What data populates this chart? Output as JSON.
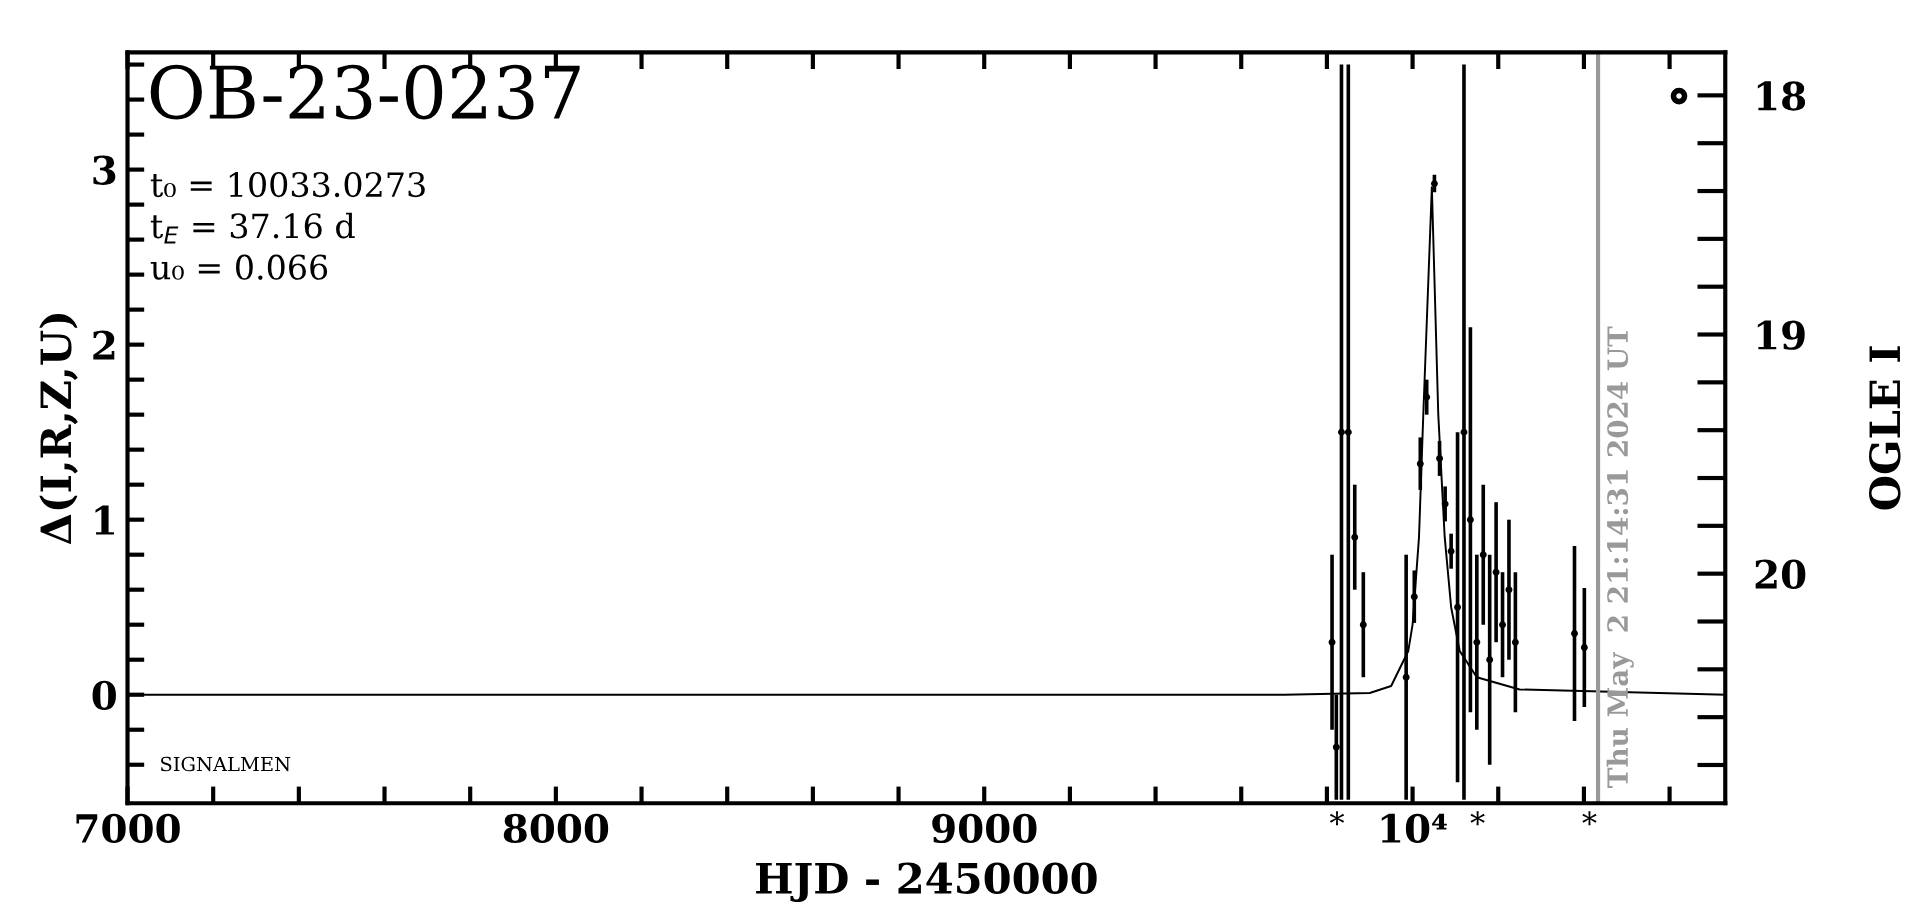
{
  "chart_data": {
    "type": "scatter",
    "title": "OB-23-0237",
    "xlabel": "HJD - 2450000",
    "ylabel": "Δ(I,R,Z,U)",
    "y2label": "OGLE I",
    "annotations": [
      "t₀ = 10033.0273",
      "t$_{E}$ = 37.16 d",
      "u₀ = 0.066",
      "SIGNALMEN",
      "Thu May  2 21:14:31 2024 UT",
      "*",
      "*",
      "*"
    ],
    "xlim": [
      7000,
      10730
    ],
    "ylim": [
      -0.62,
      3.67
    ],
    "y2lim": [
      20.96,
      17.82
    ],
    "xticks": [
      7000,
      {
        "value": 7200,
        "label": null
      },
      {
        "value": 7400,
        "label": null
      },
      {
        "value": 7600,
        "label": null
      },
      {
        "value": 7800,
        "label": null
      },
      8000,
      {
        "value": 8200,
        "label": null
      },
      {
        "value": 8400,
        "label": null
      },
      {
        "value": 8600,
        "label": null
      },
      {
        "value": 8800,
        "label": null
      },
      9000,
      {
        "value": 9200,
        "label": null
      },
      {
        "value": 9400,
        "label": null
      },
      {
        "value": 9600,
        "label": null
      },
      {
        "value": 9800,
        "label": null
      },
      {
        "value": 10000,
        "label": "10⁴"
      },
      {
        "value": 10200,
        "label": null
      },
      {
        "value": 10400,
        "label": null
      },
      {
        "value": 10600,
        "label": null
      }
    ],
    "yticks": [
      {
        "value": -0.4,
        "label": null
      },
      {
        "value": -0.2,
        "label": null
      },
      0,
      {
        "value": 0.2,
        "label": null
      },
      {
        "value": 0.4,
        "label": null
      },
      {
        "value": 0.6,
        "label": null
      },
      {
        "value": 0.8,
        "label": null
      },
      1,
      {
        "value": 1.2,
        "label": null
      },
      {
        "value": 1.4,
        "label": null
      },
      {
        "value": 1.6,
        "label": null
      },
      {
        "value": 1.8,
        "label": null
      },
      2,
      {
        "value": 2.2,
        "label": null
      },
      {
        "value": 2.4,
        "label": null
      },
      {
        "value": 2.6,
        "label": null
      },
      {
        "value": 2.8,
        "label": null
      },
      3,
      {
        "value": 3.2,
        "label": null
      },
      {
        "value": 3.4,
        "label": null
      },
      {
        "value": 3.6,
        "label": null
      }
    ],
    "y2ticks": [
      18,
      {
        "value": 18.2,
        "label": null
      },
      {
        "value": 18.4,
        "label": null
      },
      {
        "value": 18.6,
        "label": null
      },
      {
        "value": 18.8,
        "label": null
      },
      19,
      {
        "value": 19.2,
        "label": null
      },
      {
        "value": 19.4,
        "label": null
      },
      {
        "value": 19.6,
        "label": null
      },
      {
        "value": 19.8,
        "label": null
      },
      20,
      {
        "value": 20.2,
        "label": null
      },
      {
        "value": 20.4,
        "label": null
      },
      {
        "value": 20.6,
        "label": null
      },
      {
        "value": 20.8,
        "label": null
      }
    ],
    "ref_lines": [
      {
        "axis": "x",
        "value": 10433,
        "color": "#999999"
      }
    ],
    "grid": false,
    "legend": false,
    "series": [
      {
        "color": "#000000",
        "marker": "circle",
        "x": [
          9812,
          9822,
          9834,
          9850,
          9865,
          9885,
          9985,
          10004,
          10018,
          10033,
          10051,
          10063,
          10076,
          10090,
          10105,
          10120,
          10135,
          10150,
          10165,
          10180,
          10195,
          10210,
          10225,
          10240,
          10378,
          10401
        ],
        "values": [
          0.3,
          -0.3,
          1.5,
          1.5,
          0.9,
          0.4,
          0.1,
          0.56,
          1.32,
          1.7,
          2.92,
          1.35,
          1.09,
          0.82,
          0.5,
          1.5,
          1.0,
          0.3,
          0.8,
          0.2,
          0.7,
          0.4,
          0.6,
          0.3,
          0.35,
          0.27
        ],
        "errors": [
          0.5,
          0.3,
          2.1,
          2.1,
          0.3,
          0.3,
          0.7,
          0.15,
          0.15,
          0.1,
          0.05,
          0.1,
          0.1,
          0.1,
          1.0,
          2.1,
          1.1,
          0.5,
          0.4,
          0.6,
          0.4,
          0.3,
          0.4,
          0.4,
          0.5,
          0.34
        ]
      },
      {
        "color": "#000000",
        "marker": "circle",
        "x": [
          10622
        ],
        "values": [
          3.42
        ]
      },
      {
        "type": "line",
        "color": "#000000",
        "marker": "none",
        "x": [
          7000,
          9700,
          9900,
          9950,
          9990,
          10000,
          10015,
          10025,
          10045,
          10060,
          10075,
          10090,
          10110,
          10150,
          10250,
          10730
        ],
        "values": [
          0,
          0,
          0.01,
          0.05,
          0.25,
          0.4,
          0.9,
          1.6,
          2.9,
          1.6,
          0.9,
          0.5,
          0.25,
          0.1,
          0.03,
          0
        ]
      }
    ]
  }
}
